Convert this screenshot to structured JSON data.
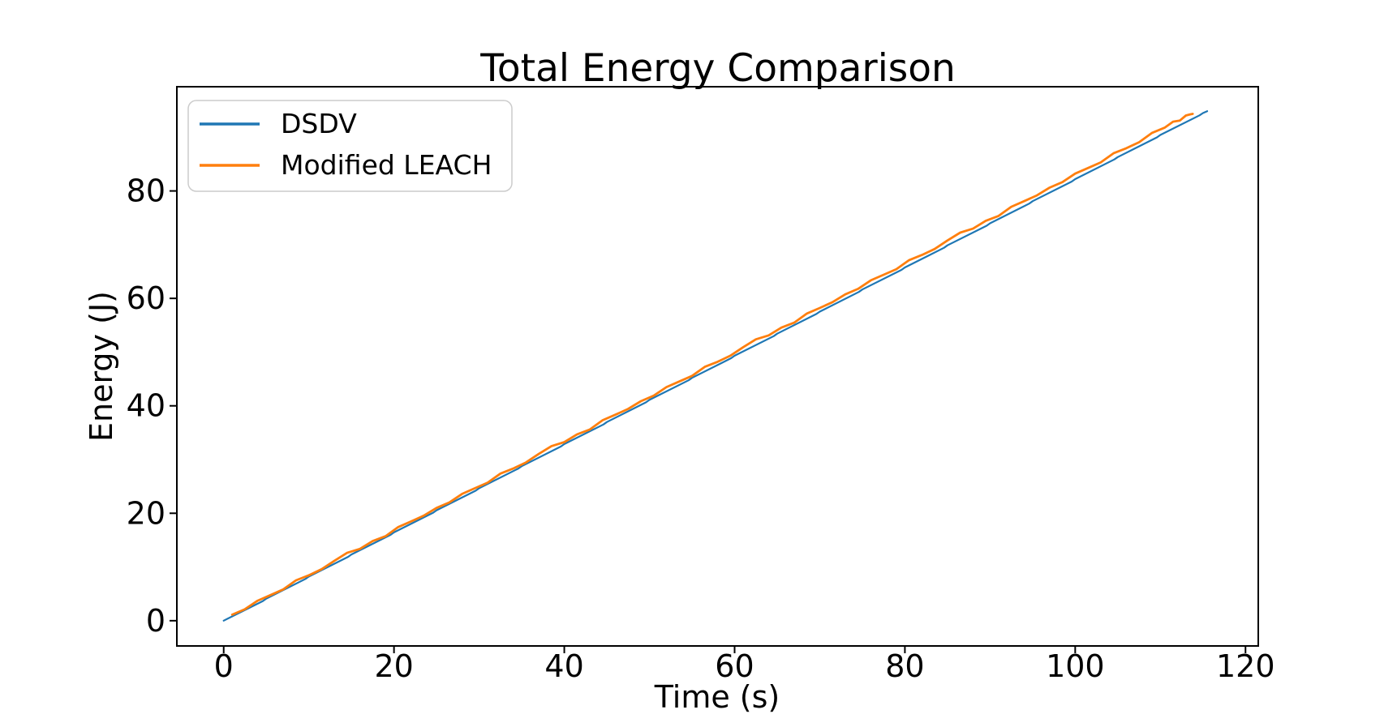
{
  "figure": {
    "background": "#ffffff",
    "spine_color": "#000000",
    "text_color": "#000000"
  },
  "chart_data": {
    "type": "line",
    "title": "Total Energy Comparison",
    "xlabel": "Time (s)",
    "ylabel": "Energy (J)",
    "xlim": [
      -5.5,
      121.5
    ],
    "ylim": [
      -4.7,
      99.4
    ],
    "xticks": [
      0,
      20,
      40,
      60,
      80,
      100,
      120
    ],
    "yticks": [
      0,
      20,
      40,
      60,
      80
    ],
    "grid": false,
    "legend": {
      "position": "upper-left"
    },
    "series": [
      {
        "name": "DSDV",
        "color": "#1f77b4",
        "linewidth": 2.2,
        "points": [
          [
            0,
            0
          ],
          [
            4.6,
            3.66
          ],
          [
            5,
            4.11
          ],
          [
            9.6,
            7.77
          ],
          [
            10,
            8.22
          ],
          [
            14.6,
            11.88
          ],
          [
            15,
            12.33
          ],
          [
            19.6,
            15.99
          ],
          [
            20,
            16.44
          ],
          [
            24.6,
            20.1
          ],
          [
            25,
            20.55
          ],
          [
            29.6,
            24.21
          ],
          [
            30,
            24.66
          ],
          [
            34.6,
            28.32
          ],
          [
            35,
            28.77
          ],
          [
            39.6,
            32.43
          ],
          [
            40,
            32.88
          ],
          [
            44.6,
            36.54
          ],
          [
            45,
            36.99
          ],
          [
            49.6,
            40.65
          ],
          [
            50,
            41.1
          ],
          [
            54.6,
            44.76
          ],
          [
            55,
            45.21
          ],
          [
            59.6,
            48.87
          ],
          [
            60,
            49.32
          ],
          [
            64.6,
            52.98
          ],
          [
            65,
            53.43
          ],
          [
            69.6,
            57.09
          ],
          [
            70,
            57.54
          ],
          [
            74.6,
            61.2
          ],
          [
            75,
            61.65
          ],
          [
            79.6,
            65.31
          ],
          [
            80,
            65.76
          ],
          [
            84.6,
            69.42
          ],
          [
            85,
            69.87
          ],
          [
            89.6,
            73.53
          ],
          [
            90,
            73.98
          ],
          [
            94.6,
            77.64
          ],
          [
            95,
            78.09
          ],
          [
            99.6,
            81.75
          ],
          [
            100,
            82.2
          ],
          [
            104.6,
            85.86
          ],
          [
            105,
            86.31
          ],
          [
            109.6,
            89.97
          ],
          [
            110,
            90.42
          ],
          [
            114.6,
            94.08
          ],
          [
            115,
            94.5
          ],
          [
            115.5,
            94.85
          ]
        ]
      },
      {
        "name": "Modified LEACH",
        "color": "#ff7f0e",
        "linewidth": 2.8,
        "points": [
          [
            1,
            1.13
          ],
          [
            2.5,
            2.15
          ],
          [
            4,
            3.74
          ],
          [
            5.5,
            4.78
          ],
          [
            7,
            5.83
          ],
          [
            8.5,
            7.52
          ],
          [
            10,
            8.46
          ],
          [
            11.5,
            9.58
          ],
          [
            13,
            11.16
          ],
          [
            14.5,
            12.64
          ],
          [
            16,
            13.38
          ],
          [
            17.5,
            14.82
          ],
          [
            19,
            15.73
          ],
          [
            20.5,
            17.43
          ],
          [
            22,
            18.48
          ],
          [
            23.5,
            19.56
          ],
          [
            25,
            21.0
          ],
          [
            26.5,
            22.02
          ],
          [
            28,
            23.61
          ],
          [
            29.5,
            24.66
          ],
          [
            31,
            25.7
          ],
          [
            32.5,
            27.39
          ],
          [
            34,
            28.33
          ],
          [
            35.5,
            29.45
          ],
          [
            37,
            31.04
          ],
          [
            38.5,
            32.51
          ],
          [
            40,
            33.25
          ],
          [
            41.5,
            34.69
          ],
          [
            43,
            35.6
          ],
          [
            44.5,
            37.31
          ],
          [
            46,
            38.35
          ],
          [
            47.5,
            39.43
          ],
          [
            49,
            40.87
          ],
          [
            50.5,
            41.89
          ],
          [
            52,
            43.49
          ],
          [
            53.5,
            44.53
          ],
          [
            55,
            45.57
          ],
          [
            56.5,
            47.26
          ],
          [
            58,
            48.2
          ],
          [
            59.5,
            49.33
          ],
          [
            61,
            50.91
          ],
          [
            62.5,
            52.38
          ],
          [
            64,
            53.12
          ],
          [
            65.5,
            54.56
          ],
          [
            67,
            55.48
          ],
          [
            68.5,
            57.18
          ],
          [
            70,
            58.22
          ],
          [
            71.5,
            59.3
          ],
          [
            73,
            60.74
          ],
          [
            74.5,
            61.77
          ],
          [
            76,
            63.36
          ],
          [
            77.5,
            64.4
          ],
          [
            79,
            65.44
          ],
          [
            80.5,
            67.13
          ],
          [
            82,
            68.08
          ],
          [
            83.5,
            69.2
          ],
          [
            85,
            70.78
          ],
          [
            86.5,
            72.25
          ],
          [
            88,
            72.99
          ],
          [
            89.5,
            74.44
          ],
          [
            91,
            75.35
          ],
          [
            92.5,
            77.05
          ],
          [
            94,
            78.09
          ],
          [
            95.5,
            79.17
          ],
          [
            97,
            80.62
          ],
          [
            98.5,
            81.64
          ],
          [
            100,
            83.23
          ],
          [
            101.5,
            84.27
          ],
          [
            103,
            85.31
          ],
          [
            104.5,
            87.01
          ],
          [
            106,
            87.95
          ],
          [
            107.5,
            89.07
          ],
          [
            109,
            90.78
          ],
          [
            110.5,
            91.77
          ],
          [
            111.5,
            92.9
          ],
          [
            112.3,
            93.11
          ],
          [
            113,
            94.04
          ],
          [
            113.5,
            94.26
          ],
          [
            113.8,
            94.35
          ]
        ]
      }
    ]
  }
}
